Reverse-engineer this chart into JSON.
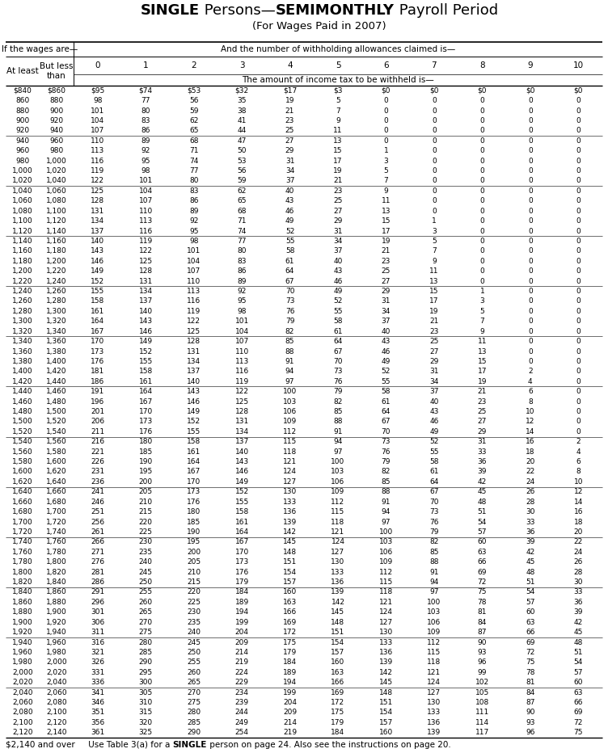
{
  "title_parts": [
    [
      "SINGLE",
      true
    ],
    [
      " Persons—",
      false
    ],
    [
      "SEMIMONTHLY",
      true
    ],
    [
      " Payroll Period",
      false
    ]
  ],
  "title2": "(For Wages Paid in 2007)",
  "col_headers": [
    "0",
    "1",
    "2",
    "3",
    "4",
    "5",
    "6",
    "7",
    "8",
    "9",
    "10"
  ],
  "rows": [
    [
      840,
      860,
      95,
      74,
      53,
      32,
      17,
      3,
      0,
      0,
      0,
      0,
      0
    ],
    [
      860,
      880,
      98,
      77,
      56,
      35,
      19,
      5,
      0,
      0,
      0,
      0,
      0
    ],
    [
      880,
      900,
      101,
      80,
      59,
      38,
      21,
      7,
      0,
      0,
      0,
      0,
      0
    ],
    [
      900,
      920,
      104,
      83,
      62,
      41,
      23,
      9,
      0,
      0,
      0,
      0,
      0
    ],
    [
      920,
      940,
      107,
      86,
      65,
      44,
      25,
      11,
      0,
      0,
      0,
      0,
      0
    ],
    [
      940,
      960,
      110,
      89,
      68,
      47,
      27,
      13,
      0,
      0,
      0,
      0,
      0
    ],
    [
      960,
      980,
      113,
      92,
      71,
      50,
      29,
      15,
      1,
      0,
      0,
      0,
      0
    ],
    [
      980,
      1000,
      116,
      95,
      74,
      53,
      31,
      17,
      3,
      0,
      0,
      0,
      0
    ],
    [
      1000,
      1020,
      119,
      98,
      77,
      56,
      34,
      19,
      5,
      0,
      0,
      0,
      0
    ],
    [
      1020,
      1040,
      122,
      101,
      80,
      59,
      37,
      21,
      7,
      0,
      0,
      0,
      0
    ],
    [
      1040,
      1060,
      125,
      104,
      83,
      62,
      40,
      23,
      9,
      0,
      0,
      0,
      0
    ],
    [
      1060,
      1080,
      128,
      107,
      86,
      65,
      43,
      25,
      11,
      0,
      0,
      0,
      0
    ],
    [
      1080,
      1100,
      131,
      110,
      89,
      68,
      46,
      27,
      13,
      0,
      0,
      0,
      0
    ],
    [
      1100,
      1120,
      134,
      113,
      92,
      71,
      49,
      29,
      15,
      1,
      0,
      0,
      0
    ],
    [
      1120,
      1140,
      137,
      116,
      95,
      74,
      52,
      31,
      17,
      3,
      0,
      0,
      0
    ],
    [
      1140,
      1160,
      140,
      119,
      98,
      77,
      55,
      34,
      19,
      5,
      0,
      0,
      0
    ],
    [
      1160,
      1180,
      143,
      122,
      101,
      80,
      58,
      37,
      21,
      7,
      0,
      0,
      0
    ],
    [
      1180,
      1200,
      146,
      125,
      104,
      83,
      61,
      40,
      23,
      9,
      0,
      0,
      0
    ],
    [
      1200,
      1220,
      149,
      128,
      107,
      86,
      64,
      43,
      25,
      11,
      0,
      0,
      0
    ],
    [
      1220,
      1240,
      152,
      131,
      110,
      89,
      67,
      46,
      27,
      13,
      0,
      0,
      0
    ],
    [
      1240,
      1260,
      155,
      134,
      113,
      92,
      70,
      49,
      29,
      15,
      1,
      0,
      0
    ],
    [
      1260,
      1280,
      158,
      137,
      116,
      95,
      73,
      52,
      31,
      17,
      3,
      0,
      0
    ],
    [
      1280,
      1300,
      161,
      140,
      119,
      98,
      76,
      55,
      34,
      19,
      5,
      0,
      0
    ],
    [
      1300,
      1320,
      164,
      143,
      122,
      101,
      79,
      58,
      37,
      21,
      7,
      0,
      0
    ],
    [
      1320,
      1340,
      167,
      146,
      125,
      104,
      82,
      61,
      40,
      23,
      9,
      0,
      0
    ],
    [
      1340,
      1360,
      170,
      149,
      128,
      107,
      85,
      64,
      43,
      25,
      11,
      0,
      0
    ],
    [
      1360,
      1380,
      173,
      152,
      131,
      110,
      88,
      67,
      46,
      27,
      13,
      0,
      0
    ],
    [
      1380,
      1400,
      176,
      155,
      134,
      113,
      91,
      70,
      49,
      29,
      15,
      0,
      0
    ],
    [
      1400,
      1420,
      181,
      158,
      137,
      116,
      94,
      73,
      52,
      31,
      17,
      2,
      0
    ],
    [
      1420,
      1440,
      186,
      161,
      140,
      119,
      97,
      76,
      55,
      34,
      19,
      4,
      0
    ],
    [
      1440,
      1460,
      191,
      164,
      143,
      122,
      100,
      79,
      58,
      37,
      21,
      6,
      0
    ],
    [
      1460,
      1480,
      196,
      167,
      146,
      125,
      103,
      82,
      61,
      40,
      23,
      8,
      0
    ],
    [
      1480,
      1500,
      201,
      170,
      149,
      128,
      106,
      85,
      64,
      43,
      25,
      10,
      0
    ],
    [
      1500,
      1520,
      206,
      173,
      152,
      131,
      109,
      88,
      67,
      46,
      27,
      12,
      0
    ],
    [
      1520,
      1540,
      211,
      176,
      155,
      134,
      112,
      91,
      70,
      49,
      29,
      14,
      0
    ],
    [
      1540,
      1560,
      216,
      180,
      158,
      137,
      115,
      94,
      73,
      52,
      31,
      16,
      2
    ],
    [
      1560,
      1580,
      221,
      185,
      161,
      140,
      118,
      97,
      76,
      55,
      33,
      18,
      4
    ],
    [
      1580,
      1600,
      226,
      190,
      164,
      143,
      121,
      100,
      79,
      58,
      36,
      20,
      6
    ],
    [
      1600,
      1620,
      231,
      195,
      167,
      146,
      124,
      103,
      82,
      61,
      39,
      22,
      8
    ],
    [
      1620,
      1640,
      236,
      200,
      170,
      149,
      127,
      106,
      85,
      64,
      42,
      24,
      10
    ],
    [
      1640,
      1660,
      241,
      205,
      173,
      152,
      130,
      109,
      88,
      67,
      45,
      26,
      12
    ],
    [
      1660,
      1680,
      246,
      210,
      176,
      155,
      133,
      112,
      91,
      70,
      48,
      28,
      14
    ],
    [
      1680,
      1700,
      251,
      215,
      180,
      158,
      136,
      115,
      94,
      73,
      51,
      30,
      16
    ],
    [
      1700,
      1720,
      256,
      220,
      185,
      161,
      139,
      118,
      97,
      76,
      54,
      33,
      18
    ],
    [
      1720,
      1740,
      261,
      225,
      190,
      164,
      142,
      121,
      100,
      79,
      57,
      36,
      20
    ],
    [
      1740,
      1760,
      266,
      230,
      195,
      167,
      145,
      124,
      103,
      82,
      60,
      39,
      22
    ],
    [
      1760,
      1780,
      271,
      235,
      200,
      170,
      148,
      127,
      106,
      85,
      63,
      42,
      24
    ],
    [
      1780,
      1800,
      276,
      240,
      205,
      173,
      151,
      130,
      109,
      88,
      66,
      45,
      26
    ],
    [
      1800,
      1820,
      281,
      245,
      210,
      176,
      154,
      133,
      112,
      91,
      69,
      48,
      28
    ],
    [
      1820,
      1840,
      286,
      250,
      215,
      179,
      157,
      136,
      115,
      94,
      72,
      51,
      30
    ],
    [
      1840,
      1860,
      291,
      255,
      220,
      184,
      160,
      139,
      118,
      97,
      75,
      54,
      33
    ],
    [
      1860,
      1880,
      296,
      260,
      225,
      189,
      163,
      142,
      121,
      100,
      78,
      57,
      36
    ],
    [
      1880,
      1900,
      301,
      265,
      230,
      194,
      166,
      145,
      124,
      103,
      81,
      60,
      39
    ],
    [
      1900,
      1920,
      306,
      270,
      235,
      199,
      169,
      148,
      127,
      106,
      84,
      63,
      42
    ],
    [
      1920,
      1940,
      311,
      275,
      240,
      204,
      172,
      151,
      130,
      109,
      87,
      66,
      45
    ],
    [
      1940,
      1960,
      316,
      280,
      245,
      209,
      175,
      154,
      133,
      112,
      90,
      69,
      48
    ],
    [
      1960,
      1980,
      321,
      285,
      250,
      214,
      179,
      157,
      136,
      115,
      93,
      72,
      51
    ],
    [
      1980,
      2000,
      326,
      290,
      255,
      219,
      184,
      160,
      139,
      118,
      96,
      75,
      54
    ],
    [
      2000,
      2020,
      331,
      295,
      260,
      224,
      189,
      163,
      142,
      121,
      99,
      78,
      57
    ],
    [
      2020,
      2040,
      336,
      300,
      265,
      229,
      194,
      166,
      145,
      124,
      102,
      81,
      60
    ],
    [
      2040,
      2060,
      341,
      305,
      270,
      234,
      199,
      169,
      148,
      127,
      105,
      84,
      63
    ],
    [
      2060,
      2080,
      346,
      310,
      275,
      239,
      204,
      172,
      151,
      130,
      108,
      87,
      66
    ],
    [
      2080,
      2100,
      351,
      315,
      280,
      244,
      209,
      175,
      154,
      133,
      111,
      90,
      69
    ],
    [
      2100,
      2120,
      356,
      320,
      285,
      249,
      214,
      179,
      157,
      136,
      114,
      93,
      72
    ],
    [
      2120,
      2140,
      361,
      325,
      290,
      254,
      219,
      184,
      160,
      139,
      117,
      96,
      75
    ]
  ]
}
